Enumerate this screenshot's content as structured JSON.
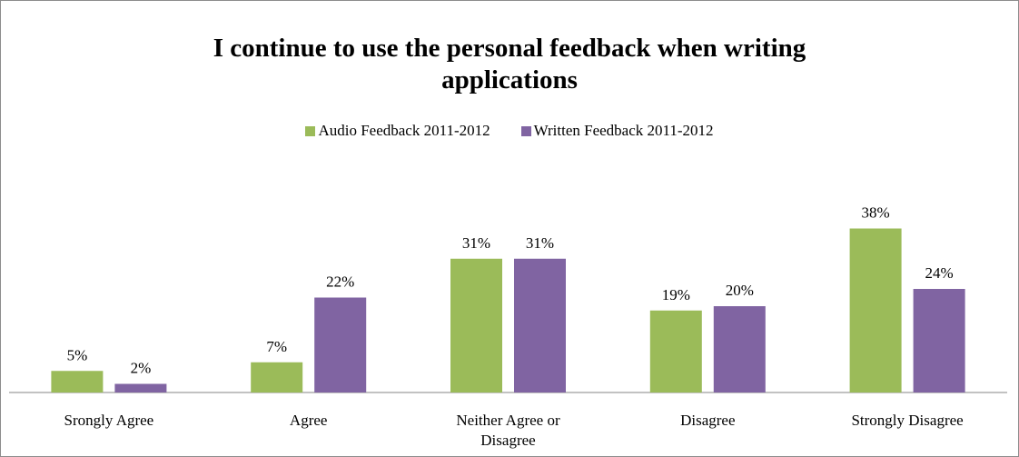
{
  "chart_data": {
    "type": "bar",
    "title": "I continue to use the personal feedback when writing applications",
    "title_lines": [
      "I continue to use the personal feedback when writing",
      "applications"
    ],
    "categories": [
      "Srongly Agree",
      "Agree",
      "Neither Agree or Disagree",
      "Disagree",
      "Strongly Disagree"
    ],
    "category_lines": [
      [
        "Srongly Agree"
      ],
      [
        "Agree"
      ],
      [
        "Neither Agree or",
        "Disagree"
      ],
      [
        "Disagree"
      ],
      [
        "Strongly Disagree"
      ]
    ],
    "series": [
      {
        "name": "Audio Feedback 2011-2012",
        "values": [
          5,
          7,
          31,
          19,
          38
        ],
        "labels": [
          "5%",
          "7%",
          "31%",
          "19%",
          "38%"
        ],
        "color": "#9bbb59"
      },
      {
        "name": "Written Feedback 2011-2012",
        "values": [
          2,
          22,
          31,
          20,
          24
        ],
        "labels": [
          "2%",
          "22%",
          "31%",
          "20%",
          "24%"
        ],
        "color": "#8064a2"
      }
    ],
    "ylim": [
      0,
      40
    ],
    "grid": false,
    "legend": "top"
  }
}
